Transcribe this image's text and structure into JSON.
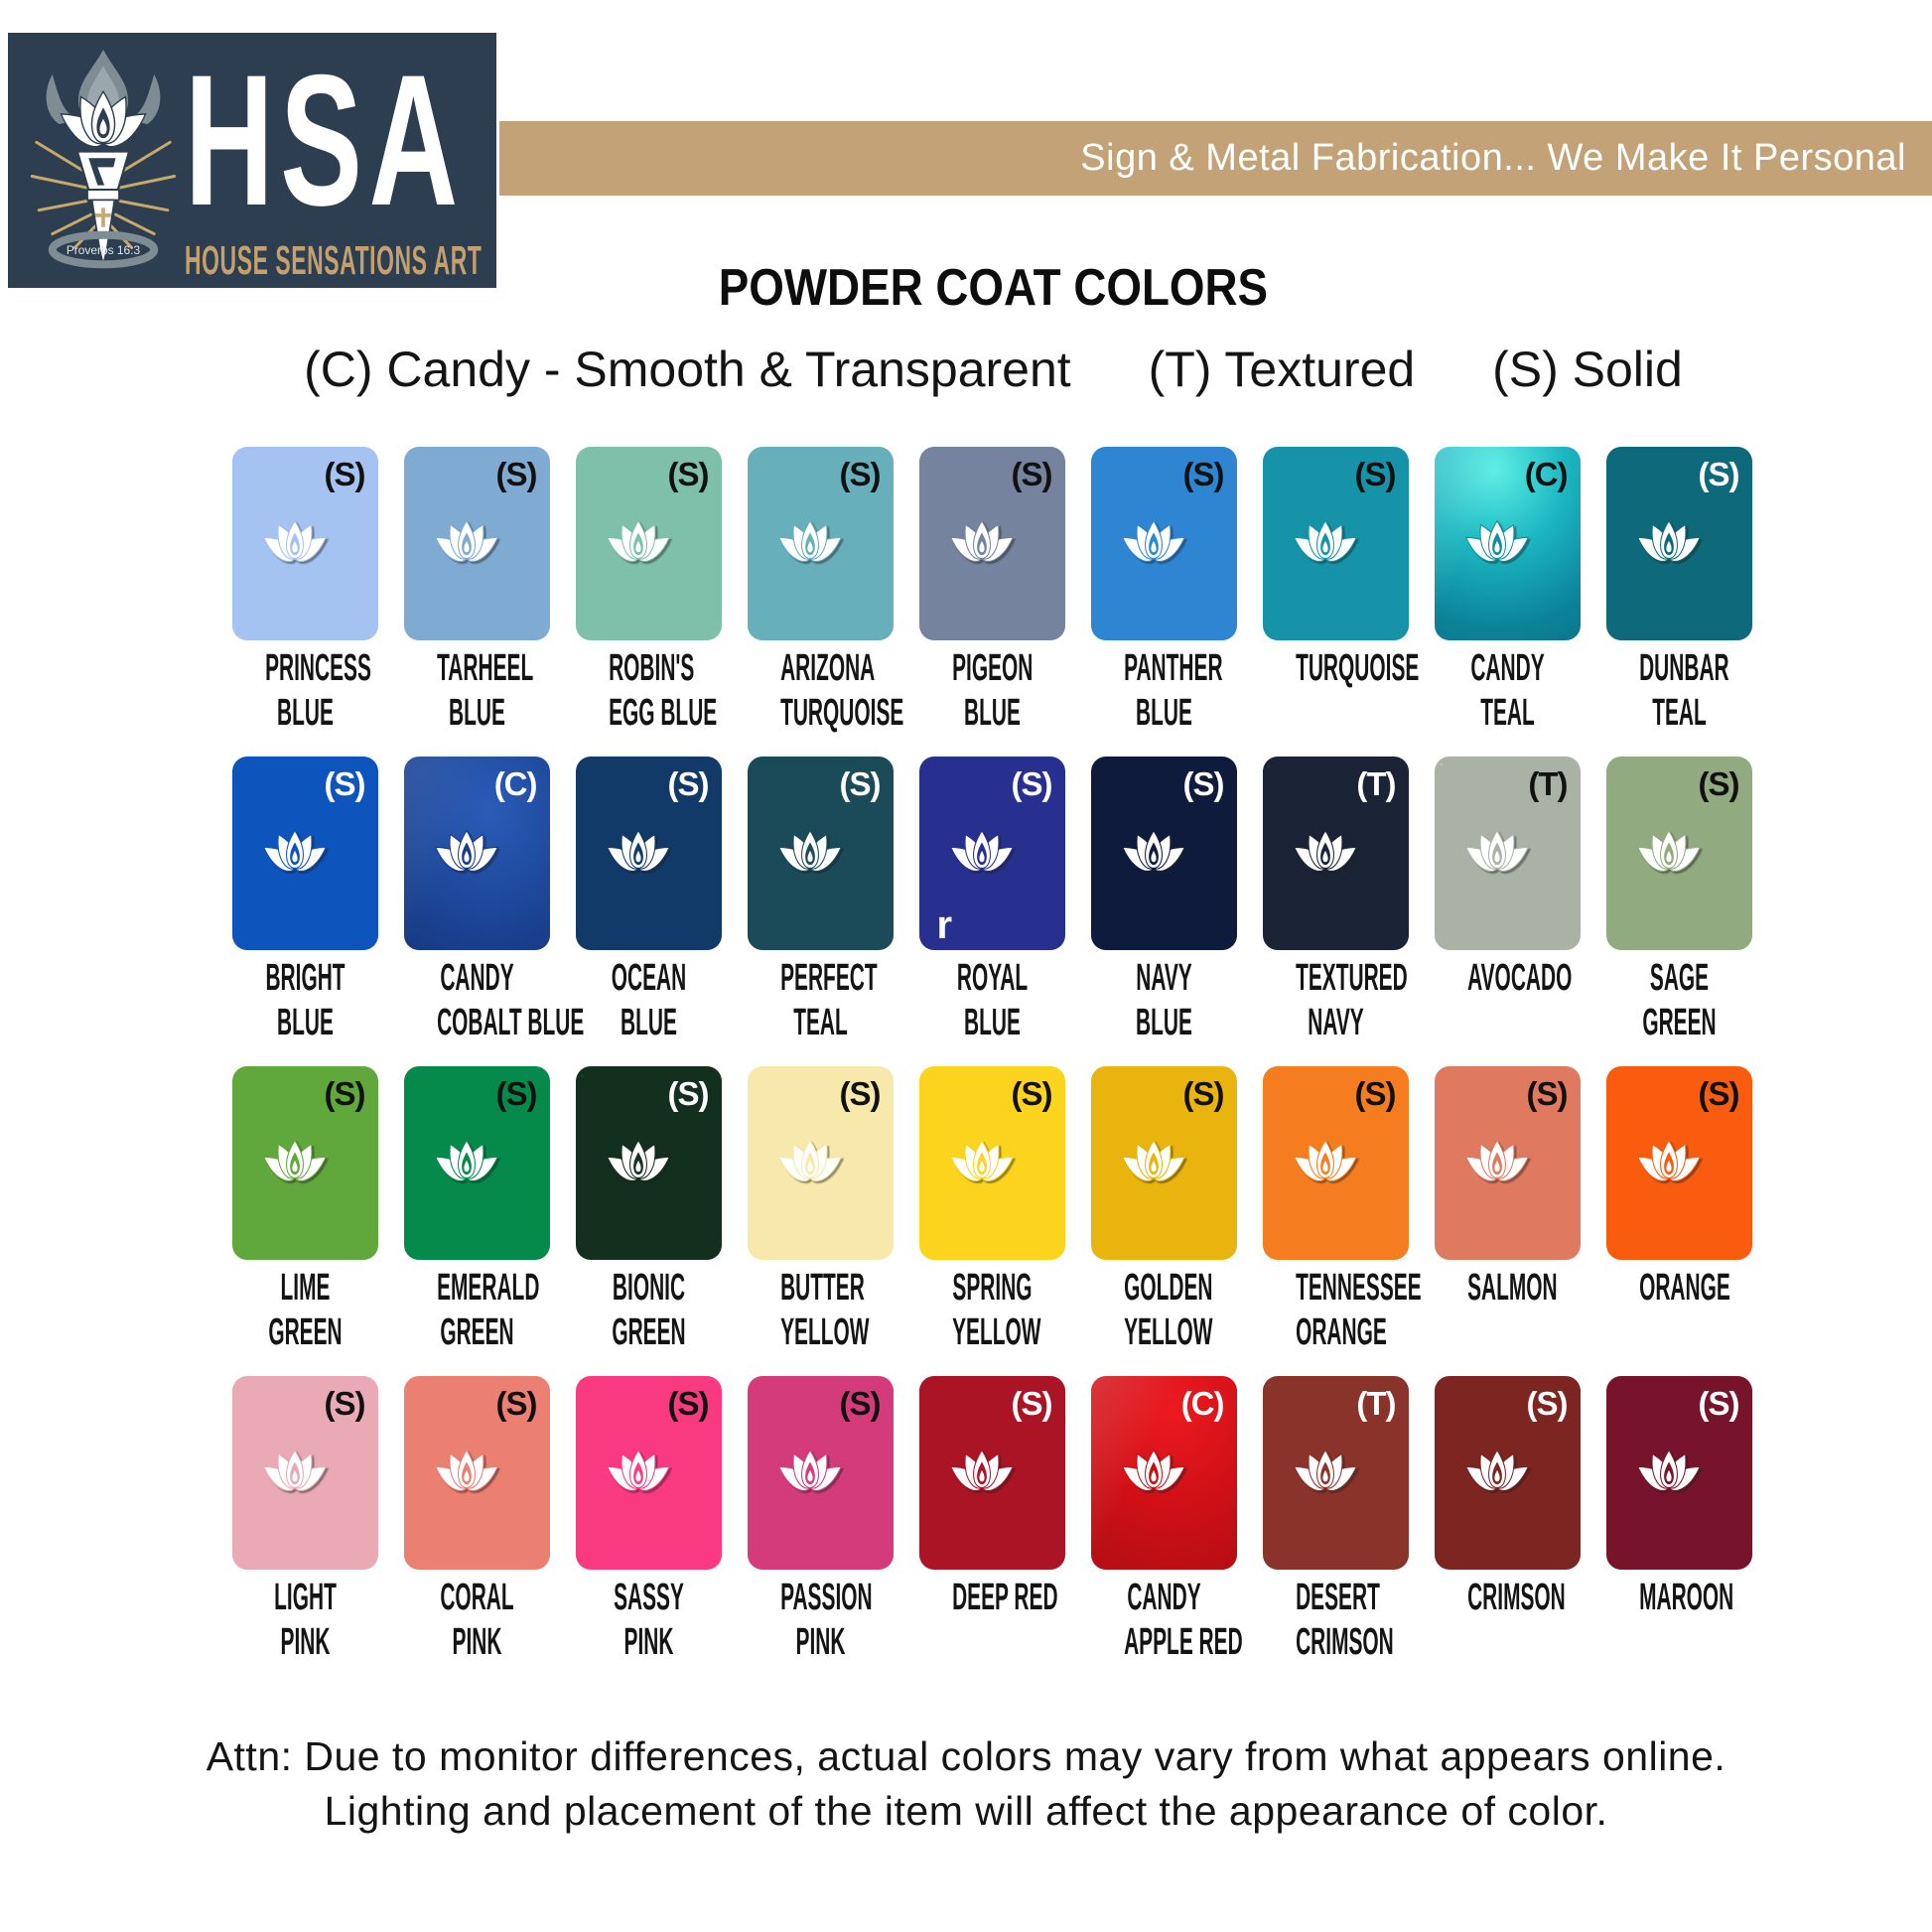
{
  "header": {
    "logo": {
      "acronym": "HSA",
      "name": "HOUSE SENSATIONS ART",
      "verse": "Proverbs 16:3",
      "colors": {
        "bg": "#2d3e50",
        "text": "#ffffff",
        "gold": "#c3a06c",
        "gray": "#7e8c93"
      }
    },
    "banner": {
      "text": "Sign & Metal Fabrication... We Make It Personal",
      "bg": "#c2a276",
      "text_color": "#ffffff"
    }
  },
  "title": "POWDER COAT COLORS",
  "legend": {
    "items": [
      {
        "text": "(C) Candy - Smooth & Transparent"
      },
      {
        "text": "(T) Textured"
      },
      {
        "text": "(S) Solid"
      }
    ]
  },
  "icons": {
    "swatch": "lotus-icon",
    "logo": "torch-lotus-emblem"
  },
  "swatch_rows": [
    [
      {
        "name": [
          "PRINCESS",
          "BLUE"
        ],
        "type": "(S)",
        "finish": "solid",
        "color": "#a5c3f1",
        "type_color": "#111111"
      },
      {
        "name": [
          "TARHEEL",
          "BLUE"
        ],
        "type": "(S)",
        "finish": "solid",
        "color": "#7fabd2",
        "type_color": "#111111"
      },
      {
        "name": [
          "ROBIN'S",
          "EGG BLUE"
        ],
        "type": "(S)",
        "finish": "solid",
        "color": "#7fc0ab",
        "type_color": "#111111"
      },
      {
        "name": [
          "ARIZONA",
          "TURQUOISE"
        ],
        "type": "(S)",
        "finish": "solid",
        "color": "#67afba",
        "type_color": "#111111"
      },
      {
        "name": [
          "PIGEON",
          "BLUE"
        ],
        "type": "(S)",
        "finish": "solid",
        "color": "#75839f",
        "type_color": "#111111"
      },
      {
        "name": [
          "PANTHER",
          "BLUE"
        ],
        "type": "(S)",
        "finish": "solid",
        "color": "#2e86d3",
        "type_color": "#111111"
      },
      {
        "name": [
          "TURQUOISE"
        ],
        "type": "(S)",
        "finish": "solid",
        "color": "#1793a9",
        "type_color": "#111111"
      },
      {
        "name": [
          "CANDY",
          "TEAL"
        ],
        "type": "(C)",
        "finish": "candy",
        "color": "#0e8ea0",
        "type_color": "#111111",
        "gradient": "linear-gradient(115deg, rgba(255,255,255,0.20) 0%, rgba(255,255,255,0) 35%), radial-gradient(140% 120% at 42% 12%, #5deee6 0%, #1cb7c1 34%, #0c8398 68%, #0a6a80 100%)"
      },
      {
        "name": [
          "DUNBAR",
          "TEAL"
        ],
        "type": "(S)",
        "finish": "solid",
        "color": "#0e6a7b",
        "type_color": "#ffffff"
      }
    ],
    [
      {
        "name": [
          "BRIGHT",
          "BLUE"
        ],
        "type": "(S)",
        "finish": "solid",
        "color": "#0d54bc",
        "type_color": "#ffffff"
      },
      {
        "name": [
          "CANDY",
          "COBALT BLUE"
        ],
        "type": "(C)",
        "finish": "candy",
        "color": "#173a85",
        "type_color": "#ffffff",
        "gradient": "linear-gradient(115deg, rgba(255,255,255,0.10) 0%, rgba(255,255,255,0) 40%), radial-gradient(150% 130% at 58% 28%, #2a5cb8 0%, #1b4494 45%, #112a66 100%)"
      },
      {
        "name": [
          "OCEAN",
          "BLUE"
        ],
        "type": "(S)",
        "finish": "solid",
        "color": "#123a69",
        "type_color": "#ffffff"
      },
      {
        "name": [
          "PERFECT",
          "TEAL"
        ],
        "type": "(S)",
        "finish": "solid",
        "color": "#1b4a58",
        "type_color": "#ffffff"
      },
      {
        "name": [
          "ROYAL",
          "BLUE"
        ],
        "type": "(S)",
        "finish": "solid",
        "color": "#27308f",
        "type_color": "#ffffff",
        "artifact": "r"
      },
      {
        "name": [
          "NAVY",
          "BLUE"
        ],
        "type": "(S)",
        "finish": "solid",
        "color": "#0e1b3d",
        "type_color": "#ffffff"
      },
      {
        "name": [
          "TEXTURED",
          "NAVY"
        ],
        "type": "(T)",
        "finish": "textured",
        "color": "#1b2436",
        "type_color": "#ffffff",
        "texture": "light"
      },
      {
        "name": [
          "AVOCADO"
        ],
        "type": "(T)",
        "finish": "textured",
        "color": "#a9b2a4",
        "type_color": "#111111",
        "texture": "dark"
      },
      {
        "name": [
          "SAGE",
          "GREEN"
        ],
        "type": "(S)",
        "finish": "solid",
        "color": "#92aa80",
        "type_color": "#111111"
      }
    ],
    [
      {
        "name": [
          "LIME",
          "GREEN"
        ],
        "type": "(S)",
        "finish": "solid",
        "color": "#60a73c",
        "type_color": "#111111"
      },
      {
        "name": [
          "EMERALD",
          "GREEN"
        ],
        "type": "(S)",
        "finish": "solid",
        "color": "#058a4b",
        "type_color": "#111111"
      },
      {
        "name": [
          "BIONIC",
          "GREEN"
        ],
        "type": "(S)",
        "finish": "solid",
        "color": "#132f1e",
        "type_color": "#ffffff",
        "texture": "light"
      },
      {
        "name": [
          "BUTTER",
          "YELLOW"
        ],
        "type": "(S)",
        "finish": "solid",
        "color": "#f7e9ab",
        "type_color": "#111111"
      },
      {
        "name": [
          "SPRING",
          "YELLOW"
        ],
        "type": "(S)",
        "finish": "solid",
        "color": "#fcd41d",
        "type_color": "#111111"
      },
      {
        "name": [
          "GOLDEN",
          "YELLOW"
        ],
        "type": "(S)",
        "finish": "solid",
        "color": "#e9b40e",
        "type_color": "#111111"
      },
      {
        "name": [
          "TENNESSEE",
          "ORANGE"
        ],
        "type": "(S)",
        "finish": "solid",
        "color": "#f67d1f",
        "type_color": "#111111"
      },
      {
        "name": [
          "SALMON"
        ],
        "type": "(S)",
        "finish": "solid",
        "color": "#df7a61",
        "type_color": "#111111"
      },
      {
        "name": [
          "ORANGE"
        ],
        "type": "(S)",
        "finish": "solid",
        "color": "#f95c0f",
        "type_color": "#111111"
      }
    ],
    [
      {
        "name": [
          "LIGHT",
          "PINK"
        ],
        "type": "(S)",
        "finish": "solid",
        "color": "#e9aab5",
        "type_color": "#111111"
      },
      {
        "name": [
          "CORAL",
          "PINK"
        ],
        "type": "(S)",
        "finish": "solid",
        "color": "#eb7f71",
        "type_color": "#111111"
      },
      {
        "name": [
          "SASSY",
          "PINK"
        ],
        "type": "(S)",
        "finish": "solid",
        "color": "#f93a80",
        "type_color": "#111111"
      },
      {
        "name": [
          "PASSION",
          "PINK"
        ],
        "type": "(S)",
        "finish": "solid",
        "color": "#d43b7b",
        "type_color": "#111111"
      },
      {
        "name": [
          "DEEP RED"
        ],
        "type": "(S)",
        "finish": "solid",
        "color": "#ab1425",
        "type_color": "#ffffff"
      },
      {
        "name": [
          "CANDY",
          "APPLE RED"
        ],
        "type": "(C)",
        "finish": "candy",
        "color": "#c31217",
        "type_color": "#ffffff",
        "gradient": "linear-gradient(115deg, rgba(255,255,255,0.16) 0%, rgba(255,255,255,0) 38%), radial-gradient(150% 130% at 55% 16%, #ec1a20 0%, #cf1016 40%, #9c0c11 100%)"
      },
      {
        "name": [
          "DESERT",
          "CRIMSON"
        ],
        "type": "(T)",
        "finish": "textured",
        "color": "#8a332b",
        "type_color": "#ffffff",
        "texture": "light"
      },
      {
        "name": [
          "CRIMSON"
        ],
        "type": "(S)",
        "finish": "solid",
        "color": "#7d2521",
        "type_color": "#ffffff"
      },
      {
        "name": [
          "MAROON"
        ],
        "type": "(S)",
        "finish": "solid",
        "color": "#77142c",
        "type_color": "#ffffff"
      }
    ]
  ],
  "disclaimer": {
    "line1": "Attn: Due to monitor differences, actual colors may vary from what appears online.",
    "line2": "Lighting and placement of the item will affect the appearance of color."
  }
}
